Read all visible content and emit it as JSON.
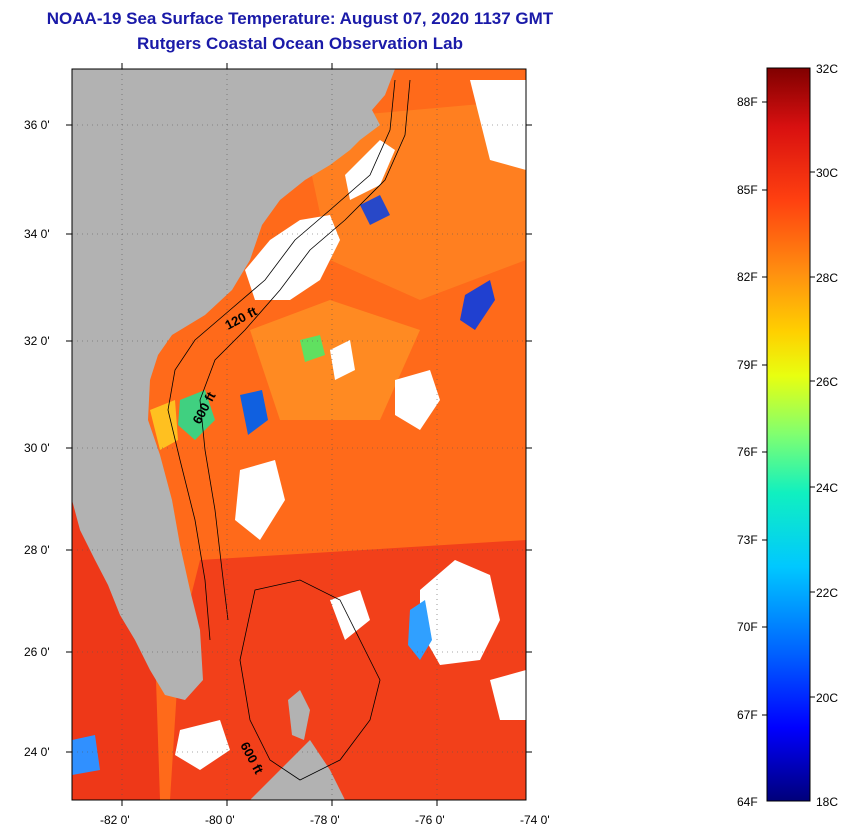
{
  "header": {
    "title": "NOAA-19 Sea Surface Temperature:  August 07, 2020 1137 GMT",
    "subtitle": "Rutgers Coastal Ocean Observation Lab"
  },
  "map": {
    "lon_ticks": [
      "-82 0'",
      "-80 0'",
      "-78 0'",
      "-76 0'",
      "-74 0'"
    ],
    "lat_ticks": [
      "36 0'",
      "34 0'",
      "32 0'",
      "30 0'",
      "28 0'",
      "26 0'",
      "24 0'"
    ],
    "contour_labels": [
      "120 ft",
      "600 ft",
      "600 ft"
    ],
    "colors": {
      "land": "#b2b2b2",
      "cloud": "#ffffff",
      "warm": "#ff5a14",
      "hot": "#f03010",
      "mid": "#ff8a1e"
    }
  },
  "colorbar": {
    "celsius_labels": [
      "32C",
      "30C",
      "28C",
      "26C",
      "24C",
      "22C",
      "20C",
      "18C"
    ],
    "fahrenheit_labels": [
      "88F",
      "85F",
      "82F",
      "79F",
      "76F",
      "73F",
      "70F",
      "67F",
      "64F"
    ]
  }
}
